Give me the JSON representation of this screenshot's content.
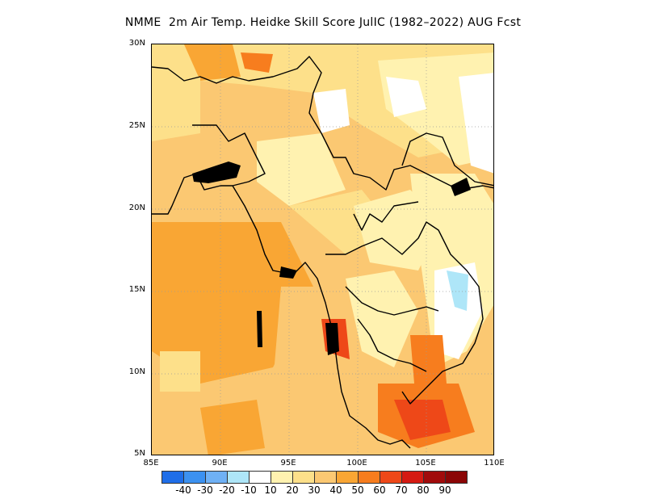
{
  "title": "NMME  2m Air Temp. Heidke Skill Score JulIC (1982–2022) AUG Fcst",
  "map": {
    "lon_range": [
      85,
      110
    ],
    "lat_range": [
      5,
      30
    ],
    "lat_ticks": [
      "30N",
      "25N",
      "20N",
      "15N",
      "10N",
      "5N"
    ],
    "lon_ticks": [
      "85E",
      "90E",
      "95E",
      "100E",
      "105E",
      "110E"
    ],
    "gridlines": "dotted"
  },
  "colorbar": {
    "labels": [
      "-40",
      "-30",
      "-20",
      "-10",
      "10",
      "20",
      "30",
      "40",
      "50",
      "60",
      "70",
      "80",
      "90"
    ],
    "colors": [
      "#1f6ee8",
      "#3c91f0",
      "#6fb1f5",
      "#aee6f8",
      "#ffffff",
      "#fff2b0",
      "#fde08a",
      "#fbc872",
      "#f9a634",
      "#f77d1e",
      "#ee4818",
      "#d51a12",
      "#a10b0b",
      "#8b0606"
    ]
  }
}
